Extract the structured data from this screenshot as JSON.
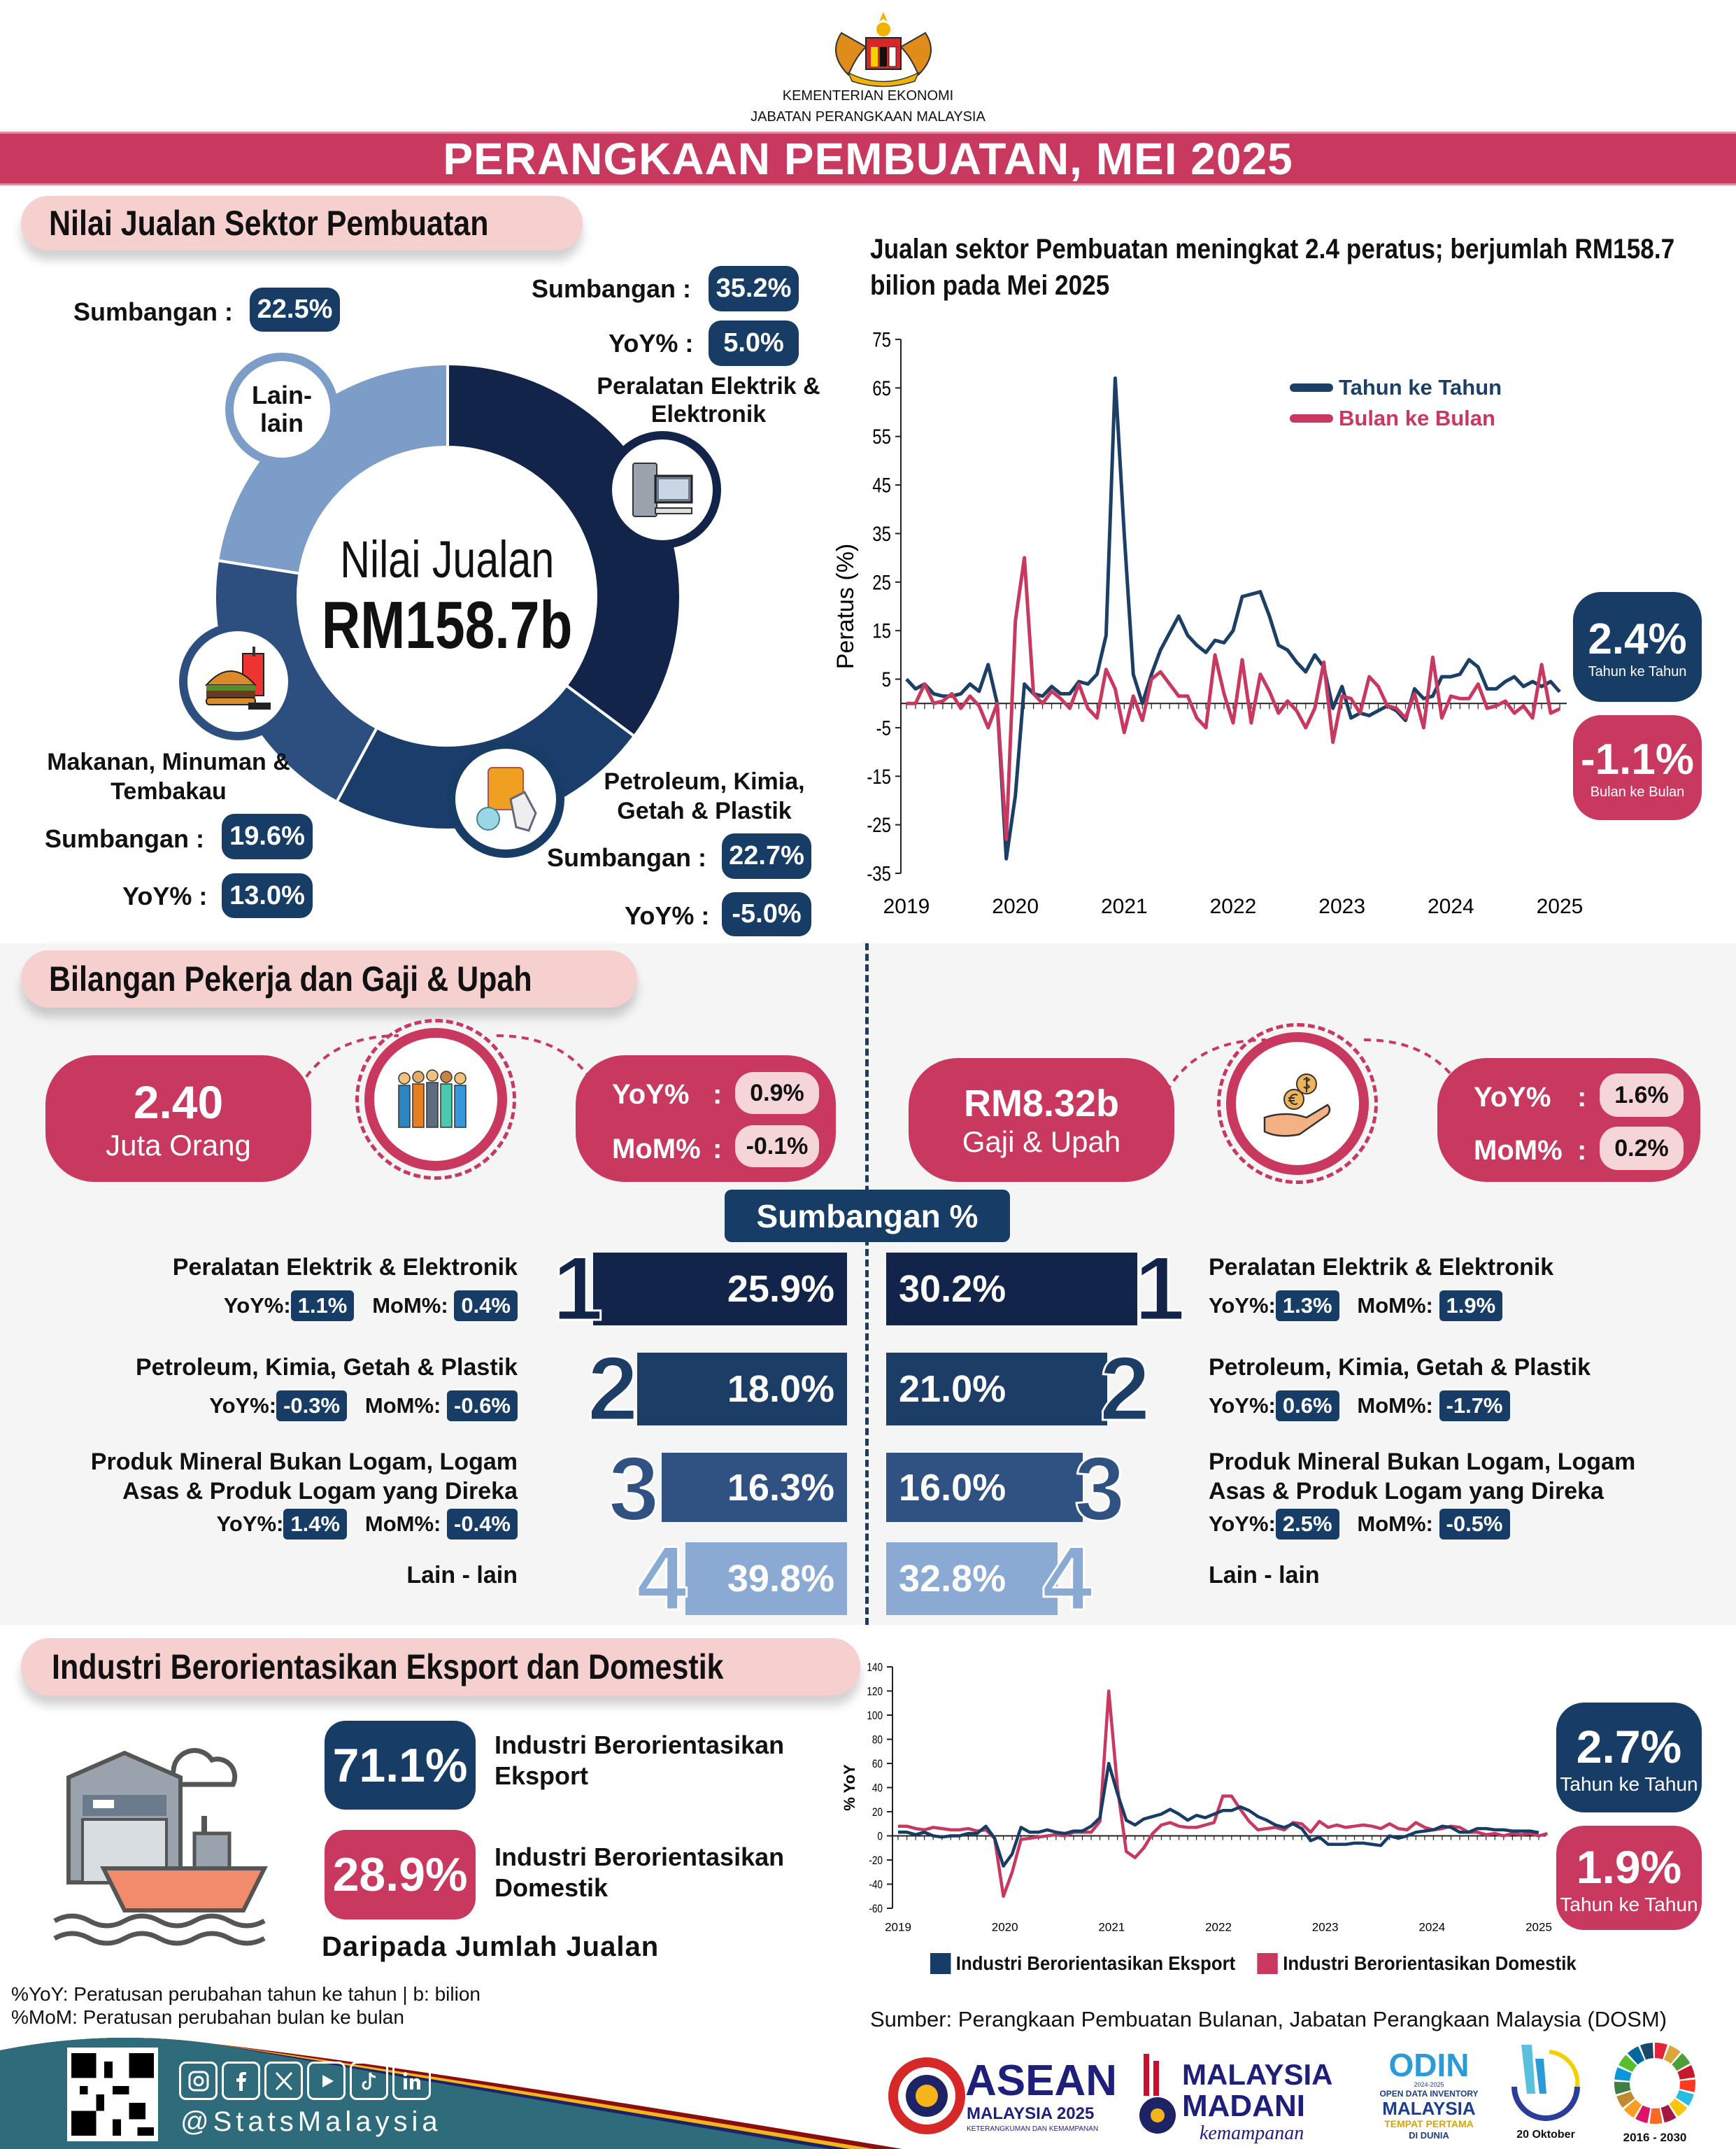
{
  "header": {
    "ministry": "KEMENTERIAN EKONOMI",
    "department": "JABATAN PERANGKAAN MALAYSIA",
    "title": "PERANGKAAN PEMBUATAN, MEI 2025"
  },
  "colors": {
    "pink": "#c8385f",
    "navy": "#173d66",
    "dark_navy": "#13244a",
    "light_pink": "#f5d0cf"
  },
  "sales": {
    "section_title": "Nilai Jualan Sektor Pembuatan",
    "center_line1": "Nilai Jualan",
    "center_line2": "RM158.7b",
    "contribution_label": "Sumbangan :",
    "yoy_label": "YoY% :",
    "segments": [
      {
        "name": "Peralatan Elektrik & Elektronik",
        "share": 35.2,
        "share_label": "35.2%",
        "yoy": "5.0%",
        "color": "#13244a",
        "icon": "computer-icon"
      },
      {
        "name": "Petroleum, Kimia, Getah & Plastik",
        "share": 22.7,
        "share_label": "22.7%",
        "yoy": "-5.0%",
        "color": "#1b3d6b",
        "icon": "chemical-barrel-icon"
      },
      {
        "name": "Makanan, Minuman & Tembakau",
        "share": 19.6,
        "share_label": "19.6%",
        "yoy": "13.0%",
        "color": "#2d4f80",
        "icon": "burger-drink-icon"
      },
      {
        "name": "Lain-lain",
        "share": 22.5,
        "share_label": "22.5%",
        "color": "#7d9dc9"
      }
    ],
    "elektrik_name_1": "Peralatan Elektrik &",
    "elektrik_name_2": "Elektronik",
    "petroleum_name_1": "Petroleum, Kimia,",
    "petroleum_name_2": "Getah & Plastik",
    "makanan_name_1": "Makanan, Minuman &",
    "makanan_name_2": "Tembakau",
    "lain_name_1": "Lain-",
    "lain_name_2": "lain"
  },
  "chart_data": [
    {
      "type": "line",
      "title": "Jualan sektor Pembuatan meningkat 2.4 peratus; berjumlah RM158.7 bilion pada Mei 2025",
      "ylabel": "Peratus (%)",
      "ylim": [
        -35,
        75
      ],
      "yticks": [
        75,
        65,
        55,
        45,
        35,
        25,
        15,
        5,
        -5,
        -15,
        -25,
        -35
      ],
      "xticks": [
        "2019",
        "2020",
        "2021",
        "2022",
        "2023",
        "2024",
        "2025"
      ],
      "legend": "top-right",
      "series": [
        {
          "name": "Tahun ke Tahun",
          "color": "#1b3f66",
          "values": [
            5,
            3,
            4,
            2,
            1.5,
            1.5,
            2,
            4,
            2.5,
            8,
            0,
            -32,
            -19,
            4,
            2,
            1.5,
            3.5,
            2,
            2,
            4.5,
            4,
            6,
            14,
            67,
            35,
            6,
            0,
            6,
            11,
            14.5,
            18,
            14,
            12,
            10.5,
            13,
            12.5,
            15,
            22,
            22.5,
            23,
            18,
            12,
            11,
            8.5,
            6.5,
            10,
            7.5,
            -1,
            3.5,
            -3,
            -2,
            -2.5,
            -1.5,
            -0.5,
            -1.5,
            -3.5,
            3,
            1,
            1.5,
            5.5,
            5.5,
            6,
            9,
            7.5,
            3,
            3,
            4.5,
            5.5,
            3.5,
            4.5,
            3.5,
            4.5,
            2.4
          ]
        },
        {
          "name": "Bulan ke Bulan",
          "color": "#c8385f",
          "values": [
            0,
            0,
            4,
            0,
            0.5,
            2,
            -1,
            1.5,
            -0.5,
            -5,
            0,
            -28,
            17,
            30,
            2,
            0,
            2.5,
            1,
            -1,
            4,
            -1,
            -3,
            7,
            3,
            -6,
            1.5,
            -3.5,
            5,
            6.5,
            4,
            1.5,
            1.5,
            -3,
            -5,
            10,
            2,
            -4,
            9,
            -4,
            6,
            2.5,
            -2,
            0.5,
            -1.5,
            -5,
            -1,
            8.5,
            -8,
            1.5,
            1,
            -2,
            5.5,
            3.5,
            -0.5,
            -1,
            -3,
            2,
            -5,
            9.5,
            -3,
            1.5,
            1,
            1,
            4,
            -1,
            -0.5,
            0.5,
            -2,
            -0.5,
            -3,
            8,
            -2,
            -1.1
          ]
        }
      ],
      "badges": [
        {
          "value": "2.4%",
          "label": "Tahun ke Tahun"
        },
        {
          "value": "-1.1%",
          "label": "Bulan ke Bulan"
        }
      ]
    },
    {
      "type": "line",
      "ylabel": "% YoY",
      "ylim": [
        -60,
        140
      ],
      "yticks": [
        140,
        120,
        100,
        80,
        60,
        40,
        20,
        0,
        -20,
        -40,
        -60
      ],
      "xticks": [
        "2019",
        "2020",
        "2021",
        "2022",
        "2023",
        "2024",
        "2025"
      ],
      "legend": "bottom",
      "series": [
        {
          "name": "Industri Berorientasikan Eksport",
          "color": "#173d66",
          "values": [
            3,
            3,
            1,
            3,
            0,
            -1,
            0,
            0,
            2,
            2,
            8,
            -2,
            -25,
            -15,
            7,
            3,
            3,
            5,
            3,
            2,
            4,
            4,
            8,
            15,
            60,
            35,
            13,
            9,
            14,
            16,
            18,
            22,
            18,
            13,
            17,
            15,
            18,
            21,
            21,
            24,
            21,
            16,
            13,
            9,
            7,
            10,
            6,
            -4,
            -1,
            -7,
            -7,
            -7,
            -6,
            -6,
            -7,
            -8,
            0,
            -2,
            0,
            3,
            4,
            5,
            8,
            7,
            3,
            3,
            6,
            6,
            5,
            5,
            4,
            4,
            4,
            2.7
          ]
        },
        {
          "name": "Industri Berorientasikan Domestik",
          "color": "#c8385f",
          "values": [
            8,
            8,
            6,
            5,
            7,
            6,
            5,
            5,
            6,
            4,
            5,
            -2,
            -50,
            -30,
            -3,
            -2,
            -1,
            0,
            1,
            0,
            3,
            3,
            3,
            12,
            120,
            40,
            -13,
            -18,
            -10,
            2,
            9,
            11,
            8,
            7,
            7,
            9,
            11,
            33,
            33,
            22,
            12,
            5,
            6,
            7,
            5,
            11,
            10,
            3,
            12,
            7,
            9,
            7,
            8,
            9,
            8,
            6,
            10,
            6,
            5,
            11,
            7,
            5,
            6,
            8,
            7,
            3,
            3,
            1,
            2,
            0,
            2,
            1,
            2,
            0,
            1.9
          ]
        }
      ],
      "badges": [
        {
          "value": "2.7%",
          "label": "Tahun ke Tahun"
        },
        {
          "value": "1.9%",
          "label": "Tahun ke Tahun"
        }
      ]
    }
  ],
  "employment": {
    "section_title": "Bilangan Pekerja dan Gaji & Upah",
    "workers_value": "2.40",
    "workers_unit": "Juta Orang",
    "workers_yoy": "0.9%",
    "workers_mom": "-0.1%",
    "wages_value": "RM8.32b",
    "wages_unit": "Gaji & Upah",
    "wages_yoy": "1.6%",
    "wages_mom": "0.2%",
    "yoy_label": "YoY%",
    "mom_label": "MoM%",
    "colon": ":",
    "contribution_title": "Sumbangan %",
    "yoy_short": "YoY%:",
    "mom_short": "MoM%:",
    "left_rows": [
      {
        "rank": "1",
        "name_1": "Peralatan Elektrik & Elektronik",
        "name_2": "",
        "share": "25.9%",
        "yoy": "1.1%",
        "mom": "0.4%"
      },
      {
        "rank": "2",
        "name_1": "Petroleum, Kimia, Getah & Plastik",
        "name_2": "",
        "share": "18.0%",
        "yoy": "-0.3%",
        "mom": "-0.6%"
      },
      {
        "rank": "3",
        "name_1": "Produk Mineral Bukan Logam, Logam",
        "name_2": "Asas & Produk Logam yang Direka",
        "share": "16.3%",
        "yoy": "1.4%",
        "mom": "-0.4%"
      },
      {
        "rank": "4",
        "name_1": "Lain - lain",
        "share": "39.8%"
      }
    ],
    "right_rows": [
      {
        "rank": "1",
        "name_1": "Peralatan Elektrik & Elektronik",
        "name_2": "",
        "share": "30.2%",
        "yoy": "1.3%",
        "mom": "1.9%"
      },
      {
        "rank": "2",
        "name_1": "Petroleum, Kimia, Getah & Plastik",
        "name_2": "",
        "share": "21.0%",
        "yoy": "0.6%",
        "mom": "-1.7%"
      },
      {
        "rank": "3",
        "name_1": "Produk Mineral Bukan Logam, Logam",
        "name_2": "Asas & Produk Logam yang Direka",
        "share": "16.0%",
        "yoy": "2.5%",
        "mom": "-0.5%"
      },
      {
        "rank": "4",
        "name_1": "Lain - lain",
        "share": "32.8%"
      }
    ]
  },
  "orientation": {
    "section_title": "Industri Berorientasikan Eksport dan Domestik",
    "export_share": "71.1%",
    "export_label_1": "Industri Berorientasikan",
    "export_label_2": "Eksport",
    "domestic_share": "28.9%",
    "domestic_label_1": "Industri Berorientasikan",
    "domestic_label_2": "Domestik",
    "caption": "Daripada Jumlah Jualan"
  },
  "footer": {
    "note_1": "%YoY: Peratusan perubahan tahun ke tahun | b: bilion",
    "note_2": "%MoM: Peratusan perubahan bulan ke bulan",
    "source": "Sumber: Perangkaan Pembuatan Bulanan, Jabatan Perangkaan Malaysia (DOSM)",
    "handle": "@StatsMalaysia",
    "social_icons": [
      "instagram-icon",
      "facebook-icon",
      "x-icon",
      "youtube-icon",
      "tiktok-icon",
      "linkedin-icon"
    ],
    "logos": [
      {
        "name": "ASEAN",
        "sub": "MALAYSIA 2025",
        "tag": "KETERANGKUMAN DAN KEMAMPANAN"
      },
      {
        "name": "MALAYSIA",
        "sub": "MADANI",
        "tag": "kemampanan"
      },
      {
        "name": "ODIN",
        "sub": "OPEN DATA INVENTORY",
        "tag": "MALAYSIA",
        "tag2": "TEMPAT PERTAMA",
        "tag3": "DI DUNIA",
        "years": "2024-2025"
      },
      {
        "name": "World Statistics Day",
        "tag": "20 Oktober"
      },
      {
        "name": "SDG",
        "tag": "2016 - 2030"
      }
    ]
  }
}
